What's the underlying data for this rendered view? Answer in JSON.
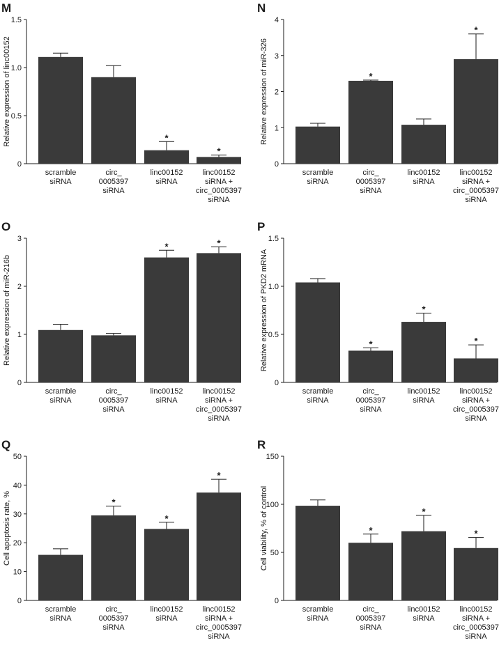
{
  "figure": {
    "colors": {
      "bar": "#3a3a3a",
      "axis": "#1a1a1a",
      "background": "#ffffff"
    }
  },
  "chart_data": [
    {
      "panel": "M",
      "type": "bar",
      "categories": [
        "scramble siRNA",
        "circ_ 0005397 siRNA",
        "linc00152 siRNA",
        "linc00152 siRNA + circ_0005397 siRNA"
      ],
      "category_lines": [
        [
          "scramble",
          "siRNA"
        ],
        [
          "circ_",
          "0005397",
          "siRNA"
        ],
        [
          "linc00152",
          "siRNA"
        ],
        [
          "linc00152",
          "siRNA +",
          "circ_0005397",
          "siRNA"
        ]
      ],
      "values": [
        1.11,
        0.9,
        0.14,
        0.07
      ],
      "errors": [
        0.04,
        0.12,
        0.09,
        0.02
      ],
      "significant": [
        false,
        false,
        true,
        true
      ],
      "ylabel": "Relative expression of linc00152",
      "ylim": [
        0,
        1.5
      ],
      "yticks": [
        0,
        0.5,
        1.0,
        1.5
      ],
      "ytick_labels": [
        "0",
        "0.5",
        "1.0",
        "1.5"
      ]
    },
    {
      "panel": "N",
      "type": "bar",
      "categories": [
        "scramble siRNA",
        "circ_ 0005397 siRNA",
        "linc00152 siRNA",
        "linc00152 siRNA + circ_0005397 siRNA"
      ],
      "category_lines": [
        [
          "scramble",
          "siRNA"
        ],
        [
          "circ_",
          "0005397",
          "siRNA"
        ],
        [
          "linc00152",
          "siRNA"
        ],
        [
          "linc00152",
          "siRNA +",
          "circ_0005397",
          "siRNA"
        ]
      ],
      "values": [
        1.03,
        2.3,
        1.08,
        2.9
      ],
      "errors": [
        0.09,
        0.02,
        0.16,
        0.7
      ],
      "significant": [
        false,
        true,
        false,
        true
      ],
      "ylabel": "Relative expression of miR-326",
      "ylim": [
        0,
        4
      ],
      "yticks": [
        0,
        1,
        2,
        3,
        4
      ],
      "ytick_labels": [
        "0",
        "1",
        "2",
        "3",
        "4"
      ]
    },
    {
      "panel": "O",
      "type": "bar",
      "categories": [
        "scramble siRNA",
        "circ_ 0005397 siRNA",
        "linc00152 siRNA",
        "linc00152 siRNA + circ_0005397 siRNA"
      ],
      "category_lines": [
        [
          "scramble",
          "siRNA"
        ],
        [
          "circ_",
          "0005397",
          "siRNA"
        ],
        [
          "linc00152",
          "siRNA"
        ],
        [
          "linc00152",
          "siRNA +",
          "circ_0005397",
          "siRNA"
        ]
      ],
      "values": [
        1.09,
        0.98,
        2.6,
        2.69
      ],
      "errors": [
        0.12,
        0.04,
        0.15,
        0.13
      ],
      "significant": [
        false,
        false,
        true,
        true
      ],
      "ylabel": "Relative expression of miR-216b",
      "ylim": [
        0,
        3
      ],
      "yticks": [
        0,
        1,
        2,
        3
      ],
      "ytick_labels": [
        "0",
        "1",
        "2",
        "3"
      ]
    },
    {
      "panel": "P",
      "type": "bar",
      "categories": [
        "scramble siRNA",
        "circ_ 0005397 siRNA",
        "linc00152 siRNA",
        "linc00152 siRNA + circ_0005397 siRNA"
      ],
      "category_lines": [
        [
          "scramble",
          "siRNA"
        ],
        [
          "circ_",
          "0005397",
          "siRNA"
        ],
        [
          "linc00152",
          "siRNA"
        ],
        [
          "linc00152",
          "siRNA +",
          "circ_0005397",
          "siRNA"
        ]
      ],
      "values": [
        1.04,
        0.33,
        0.63,
        0.25
      ],
      "errors": [
        0.04,
        0.03,
        0.09,
        0.14
      ],
      "significant": [
        false,
        true,
        true,
        true
      ],
      "ylabel": "Relative expression of PKD2 mRNA",
      "ylim": [
        0,
        1.5
      ],
      "yticks": [
        0,
        0.5,
        1.0,
        1.5
      ],
      "ytick_labels": [
        "0",
        "0.5",
        "1.0",
        "1.5"
      ]
    },
    {
      "panel": "Q",
      "type": "bar",
      "categories": [
        "scramble siRNA",
        "circ_ 0005397 siRNA",
        "linc00152 siRNA",
        "linc00152 siRNA + circ_0005397 siRNA"
      ],
      "category_lines": [
        [
          "scramble",
          "siRNA"
        ],
        [
          "circ_",
          "0005397",
          "siRNA"
        ],
        [
          "linc00152",
          "siRNA"
        ],
        [
          "linc00152",
          "siRNA +",
          "circ_0005397",
          "siRNA"
        ]
      ],
      "values": [
        15.8,
        29.5,
        24.8,
        37.4
      ],
      "errors": [
        2.1,
        3.2,
        2.3,
        4.6
      ],
      "significant": [
        false,
        true,
        true,
        true
      ],
      "ylabel": "Cell apoptosis rate, %",
      "ylim": [
        0,
        50
      ],
      "yticks": [
        0,
        10,
        20,
        30,
        40,
        50
      ],
      "ytick_labels": [
        "0",
        "10",
        "20",
        "30",
        "40",
        "50"
      ]
    },
    {
      "panel": "R",
      "type": "bar",
      "categories": [
        "scramble siRNA",
        "circ_ 0005397 siRNA",
        "linc00152 siRNA",
        "linc00152 siRNA + circ_0005397 siRNA"
      ],
      "category_lines": [
        [
          "scramble",
          "siRNA"
        ],
        [
          "circ_",
          "0005397",
          "siRNA"
        ],
        [
          "linc00152",
          "siRNA"
        ],
        [
          "linc00152",
          "siRNA +",
          "circ_0005397",
          "siRNA"
        ]
      ],
      "values": [
        98.5,
        60.0,
        72.0,
        54.5
      ],
      "errors": [
        6.0,
        9.0,
        16.5,
        11.0
      ],
      "significant": [
        false,
        true,
        true,
        true
      ],
      "ylabel": "Cell viability, % of control",
      "ylim": [
        0,
        150
      ],
      "yticks": [
        0,
        50,
        100,
        150
      ],
      "ytick_labels": [
        "0",
        "50",
        "100",
        "150"
      ]
    }
  ]
}
